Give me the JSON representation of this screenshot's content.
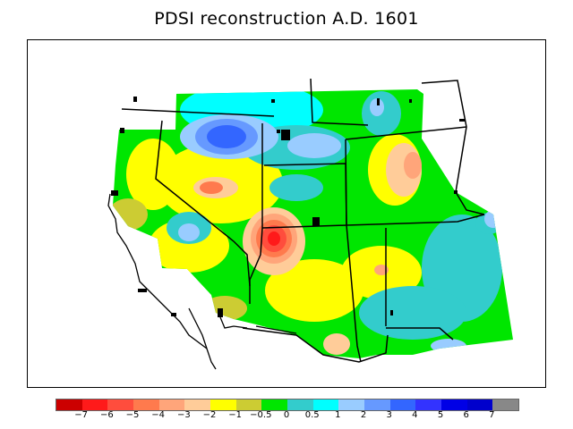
{
  "title": "PDSI reconstruction A.D. 1601",
  "legend": {
    "colors": [
      "#cc0000",
      "#ff1a1a",
      "#ff4d3d",
      "#ff7a4d",
      "#ffa57a",
      "#ffcc99",
      "#ffff00",
      "#cccc33",
      "#00e600",
      "#33cccc",
      "#00ffff",
      "#99ccff",
      "#6699ff",
      "#3366ff",
      "#3333ff",
      "#0000e6",
      "#0000cc",
      "#888888"
    ],
    "labels": [
      "−7",
      "−6",
      "−5",
      "−4",
      "−3",
      "−2",
      "−1",
      "−0.5",
      "0",
      "0.5",
      "1",
      "2",
      "3",
      "4",
      "5",
      "6",
      "7"
    ]
  },
  "colors": {
    "extreme_dry": "#ff1a1a",
    "dry": "#ffa57a",
    "neutral_dry": "#ffff00",
    "neutral": "#00e600",
    "wet": "#33cccc",
    "very_wet": "#3366ff"
  }
}
